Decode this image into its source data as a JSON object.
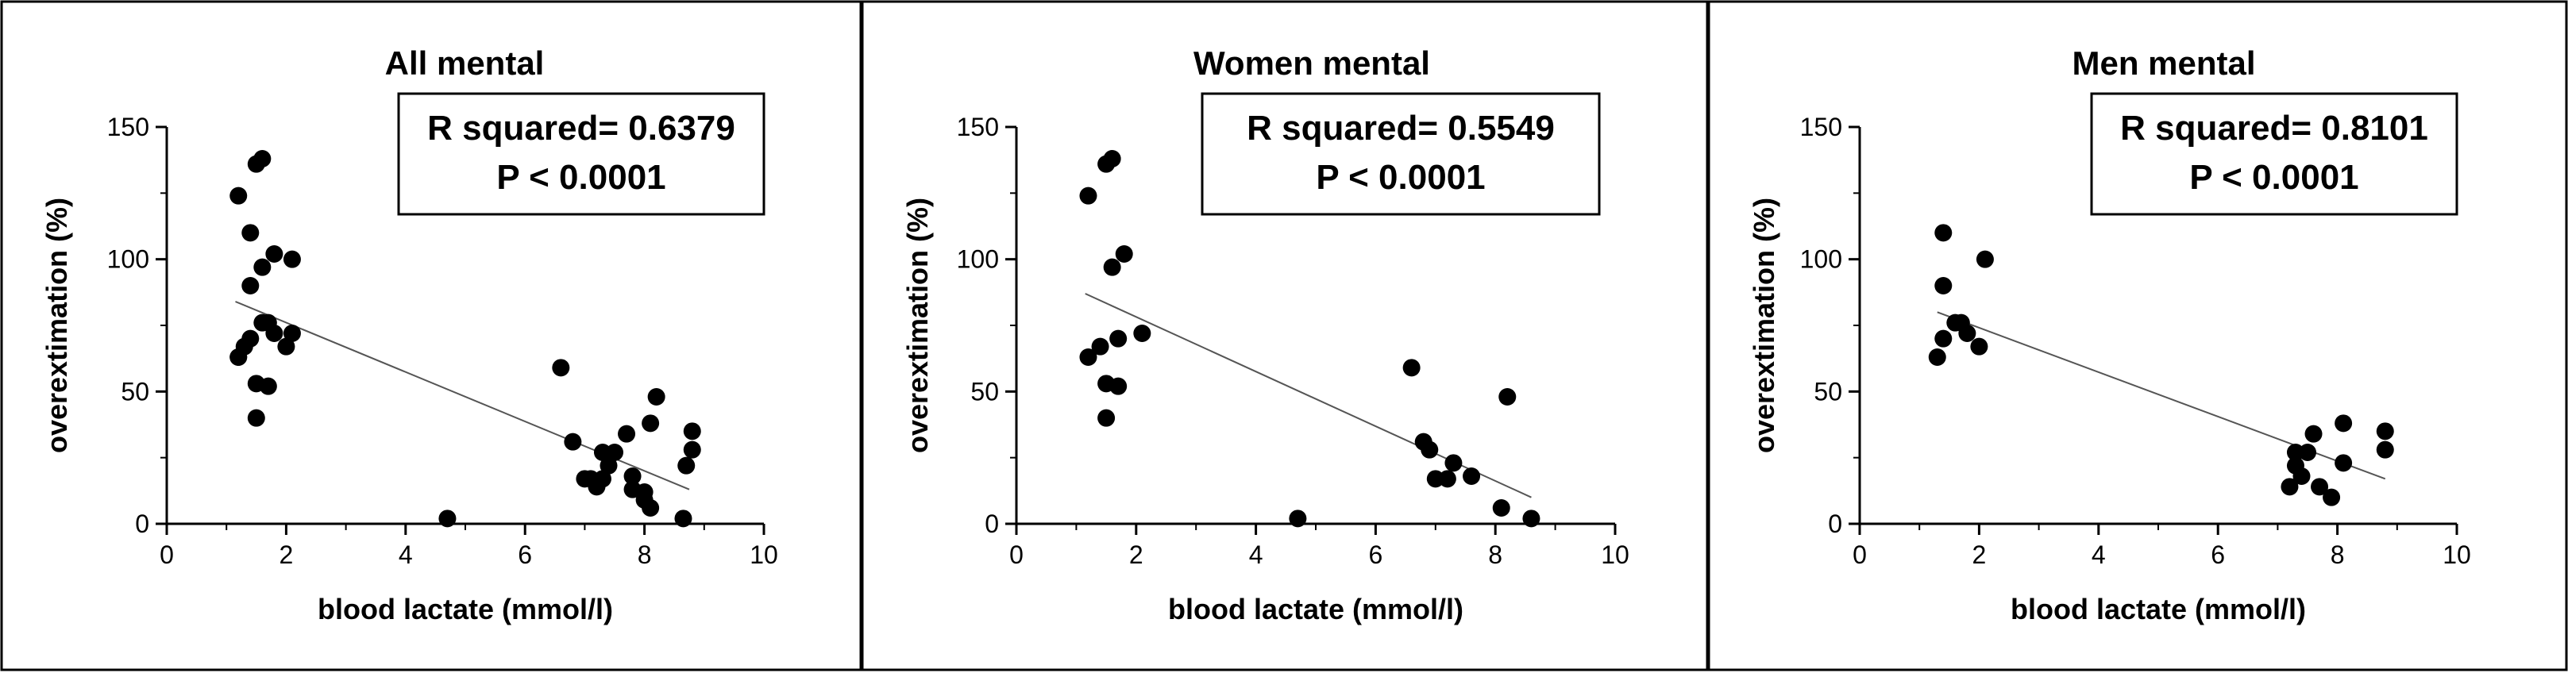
{
  "chart_data": [
    {
      "type": "scatter",
      "title": "All mental",
      "xlabel": "blood lactate (mmol/l)",
      "ylabel": "overextimation (%)",
      "xlim": [
        0,
        10
      ],
      "ylim": [
        0,
        150
      ],
      "x_ticks": [
        "0",
        "2",
        "4",
        "6",
        "8",
        "10"
      ],
      "y_ticks": [
        "0",
        "50",
        "100",
        "150"
      ],
      "stats": [
        "R squared= 0.6379",
        "P < 0.0001"
      ],
      "regression": {
        "x": [
          1.15,
          8.75
        ],
        "y": [
          84,
          13
        ]
      },
      "points": {
        "x": [
          1.2,
          1.5,
          1.6,
          1.2,
          1.4,
          1.8,
          2.1,
          1.6,
          1.4,
          1.6,
          1.7,
          1.8,
          2.1,
          1.4,
          2.0,
          1.3,
          1.2,
          1.5,
          1.7,
          1.5,
          6.6,
          6.8,
          7.0,
          7.2,
          7.3,
          7.4,
          7.5,
          7.7,
          7.8,
          8.0,
          8.1,
          8.2,
          8.7,
          8.8,
          8.8,
          7.3,
          7.1,
          7.8,
          8.0,
          7.4,
          8.1,
          8.65,
          4.7
        ],
        "y": [
          124,
          136,
          138,
          63,
          110,
          102,
          100,
          97,
          90,
          76,
          76,
          72,
          72,
          70,
          67,
          67,
          63,
          53,
          52,
          40,
          59,
          31,
          17,
          14,
          27,
          22,
          27,
          34,
          18,
          12,
          38,
          48,
          22,
          35,
          28,
          17,
          17,
          13,
          9,
          26,
          6,
          2,
          2
        ]
      }
    },
    {
      "type": "scatter",
      "title": "Women mental",
      "xlabel": "blood lactate (mmol/l)",
      "ylabel": "overextimation (%)",
      "xlim": [
        0,
        10
      ],
      "ylim": [
        0,
        150
      ],
      "x_ticks": [
        "0",
        "2",
        "4",
        "6",
        "8",
        "10"
      ],
      "y_ticks": [
        "0",
        "50",
        "100",
        "150"
      ],
      "stats": [
        "R squared= 0.5549",
        "P < 0.0001"
      ],
      "regression": {
        "x": [
          1.15,
          8.6
        ],
        "y": [
          87,
          10
        ]
      },
      "points": {
        "x": [
          1.2,
          1.5,
          1.6,
          1.6,
          1.8,
          1.7,
          2.1,
          1.4,
          1.2,
          1.5,
          1.7,
          1.5,
          6.6,
          6.8,
          6.9,
          7.0,
          7.2,
          7.3,
          7.6,
          8.2,
          8.1,
          8.6,
          4.7
        ],
        "y": [
          124,
          136,
          138,
          97,
          102,
          70,
          72,
          67,
          63,
          53,
          52,
          40,
          59,
          31,
          28,
          17,
          17,
          23,
          18,
          48,
          6,
          2,
          2
        ]
      }
    },
    {
      "type": "scatter",
      "title": "Men mental",
      "xlabel": "blood lactate (mmol/l)",
      "ylabel": "overextimation (%)",
      "xlim": [
        0,
        10
      ],
      "ylim": [
        0,
        150
      ],
      "x_ticks": [
        "0",
        "2",
        "4",
        "6",
        "8",
        "10"
      ],
      "y_ticks": [
        "0",
        "50",
        "100",
        "150"
      ],
      "stats": [
        "R squared= 0.8101",
        "P < 0.0001"
      ],
      "regression": {
        "x": [
          1.3,
          8.8
        ],
        "y": [
          80,
          17
        ]
      },
      "points": {
        "x": [
          1.4,
          1.4,
          2.1,
          1.6,
          1.7,
          1.8,
          1.4,
          2.0,
          1.3,
          7.3,
          7.3,
          7.4,
          7.5,
          7.6,
          7.7,
          8.1,
          8.1,
          8.8,
          8.8,
          7.2,
          7.9
        ],
        "y": [
          110,
          90,
          100,
          76,
          76,
          72,
          70,
          67,
          63,
          27,
          22,
          18,
          27,
          34,
          14,
          38,
          23,
          35,
          28,
          14,
          10
        ]
      }
    }
  ]
}
